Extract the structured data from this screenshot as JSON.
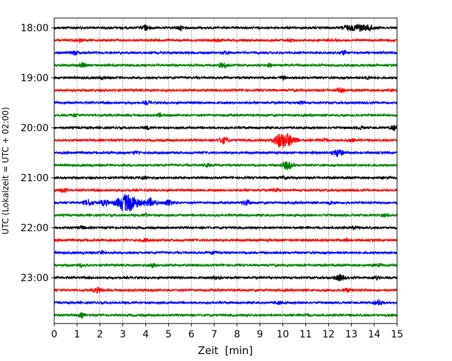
{
  "chart_data": {
    "type": "line",
    "title": "",
    "xlabel": "Zeit  [min]",
    "ylabel": "UTC (Lokalzeit = UTC + 02:00)",
    "xlim": [
      0,
      15
    ],
    "x_ticks": [
      0,
      1,
      2,
      3,
      4,
      5,
      6,
      7,
      8,
      9,
      10,
      11,
      12,
      13,
      14,
      15
    ],
    "x_tick_labels": [
      "0",
      "1",
      "2",
      "3",
      "4",
      "5",
      "6",
      "7",
      "8",
      "9",
      "10",
      "11",
      "12",
      "13",
      "14",
      "15"
    ],
    "y_tick_labels": [
      "18:00",
      "19:00",
      "20:00",
      "21:00",
      "22:00",
      "23:00"
    ],
    "grid": "vertical dotted at every minute",
    "trace_colors_cycle": [
      "#000000",
      "#ff0000",
      "#0000ff",
      "#008000"
    ],
    "series": [
      {
        "start": "18:00",
        "color": "#000000",
        "events": [
          [
            4,
            0.5
          ],
          [
            5.5,
            0.4
          ],
          [
            12.8,
            0.5
          ],
          [
            13.3,
            0.8
          ],
          [
            13.8,
            0.6
          ]
        ]
      },
      {
        "start": "18:15",
        "color": "#ff0000",
        "events": [
          [
            1.1,
            0.3
          ],
          [
            7.2,
            0.3
          ],
          [
            10.3,
            0.3
          ]
        ]
      },
      {
        "start": "18:30",
        "color": "#0000ff",
        "events": [
          [
            0.9,
            0.4
          ],
          [
            7.5,
            0.3
          ],
          [
            12.7,
            0.4
          ]
        ]
      },
      {
        "start": "18:45",
        "color": "#008000",
        "events": [
          [
            1.2,
            0.5
          ],
          [
            7.4,
            0.5
          ],
          [
            9.4,
            0.3
          ]
        ]
      },
      {
        "start": "19:00",
        "color": "#000000",
        "events": [
          [
            2.1,
            0.3
          ],
          [
            10.0,
            0.3
          ],
          [
            13.7,
            0.3
          ]
        ]
      },
      {
        "start": "19:15",
        "color": "#ff0000",
        "events": [
          [
            12.5,
            0.4
          ]
        ]
      },
      {
        "start": "19:30",
        "color": "#0000ff",
        "events": [
          [
            4.1,
            0.3
          ],
          [
            10.8,
            0.3
          ]
        ]
      },
      {
        "start": "19:45",
        "color": "#008000",
        "events": [
          [
            0.9,
            0.3
          ],
          [
            4.6,
            0.3
          ]
        ]
      },
      {
        "start": "20:00",
        "color": "#000000",
        "events": [
          [
            4.1,
            0.3
          ],
          [
            13.4,
            0.3
          ],
          [
            14.9,
            0.5
          ]
        ]
      },
      {
        "start": "20:15",
        "color": "#ff0000",
        "events": [
          [
            7.4,
            0.6
          ],
          [
            9.8,
            0.9
          ],
          [
            10.2,
            1.3
          ],
          [
            11.8,
            0.4
          ],
          [
            13.0,
            0.3
          ]
        ]
      },
      {
        "start": "20:30",
        "color": "#0000ff",
        "events": [
          [
            3.6,
            0.3
          ],
          [
            12.4,
            0.7
          ]
        ]
      },
      {
        "start": "20:45",
        "color": "#008000",
        "events": [
          [
            6.7,
            0.3
          ],
          [
            10.2,
            0.8
          ]
        ]
      },
      {
        "start": "21:00",
        "color": "#000000",
        "events": [
          [
            3.9,
            0.3
          ],
          [
            10.0,
            0.3
          ]
        ]
      },
      {
        "start": "21:15",
        "color": "#ff0000",
        "events": [
          [
            0.4,
            0.4
          ],
          [
            9.7,
            0.3
          ]
        ]
      },
      {
        "start": "21:30",
        "color": "#0000ff",
        "events": [
          [
            1.5,
            0.6
          ],
          [
            2.2,
            0.6
          ],
          [
            3.0,
            1.2
          ],
          [
            3.4,
            1.3
          ],
          [
            4.2,
            0.8
          ],
          [
            5.0,
            0.6
          ],
          [
            8.4,
            0.5
          ],
          [
            12.1,
            0.3
          ]
        ]
      },
      {
        "start": "21:45",
        "color": "#008000",
        "events": [
          [
            4.0,
            0.3
          ],
          [
            14.5,
            0.3
          ]
        ]
      },
      {
        "start": "22:00",
        "color": "#000000",
        "events": [
          [
            1.2,
            0.3
          ],
          [
            13.1,
            0.3
          ]
        ]
      },
      {
        "start": "22:15",
        "color": "#ff0000",
        "events": [
          [
            4.0,
            0.3
          ],
          [
            12.8,
            0.3
          ]
        ]
      },
      {
        "start": "22:30",
        "color": "#0000ff",
        "events": [
          [
            2.1,
            0.3
          ],
          [
            7.0,
            0.3
          ]
        ]
      },
      {
        "start": "22:45",
        "color": "#008000",
        "events": [
          [
            1.1,
            0.3
          ],
          [
            4.3,
            0.4
          ],
          [
            14.2,
            0.3
          ]
        ]
      },
      {
        "start": "23:00",
        "color": "#000000",
        "events": [
          [
            7.1,
            0.4
          ],
          [
            12.5,
            0.6
          ],
          [
            14.1,
            0.4
          ]
        ]
      },
      {
        "start": "23:15",
        "color": "#ff0000",
        "events": [
          [
            1.9,
            0.5
          ],
          [
            12.8,
            0.4
          ]
        ]
      },
      {
        "start": "23:30",
        "color": "#0000ff",
        "events": [
          [
            9.8,
            0.3
          ],
          [
            14.2,
            0.5
          ]
        ]
      },
      {
        "start": "23:45",
        "color": "#008000",
        "events": [
          [
            1.2,
            0.4
          ],
          [
            11.0,
            0.3
          ]
        ]
      }
    ]
  }
}
